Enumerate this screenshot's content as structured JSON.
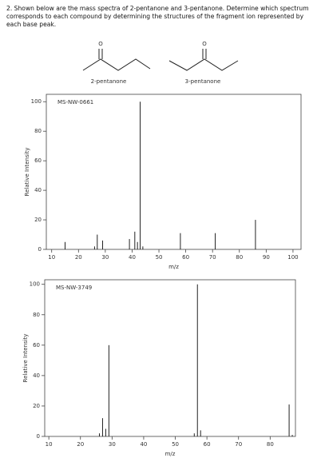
{
  "question": "2. Shown below are the mass spectra of 2-pentanone and 3-pentanone. Determine which spectrum corresponds to each compound by determining the structures of the fragment ion represented by each base peak.",
  "compounds": [
    {
      "label": "2-pentanone",
      "atom": "O"
    },
    {
      "label": "3-pentanone",
      "atom": "O"
    }
  ],
  "chart_data": [
    {
      "type": "bar",
      "code": "MS-NW-0661",
      "xlabel": "m/z",
      "ylabel": "Relative Intensity",
      "color": "#222222",
      "x": [
        15,
        26,
        27,
        29,
        39,
        41,
        42,
        43,
        44,
        58,
        71,
        86
      ],
      "values": [
        5,
        2,
        10,
        6,
        7,
        12,
        5,
        100,
        2,
        11,
        11,
        20
      ],
      "xlim": [
        8,
        103
      ],
      "ylim": [
        0,
        105
      ],
      "xticks": [
        10,
        20,
        30,
        40,
        50,
        60,
        70,
        80,
        90,
        100
      ],
      "yticks": [
        0,
        20,
        40,
        60,
        80,
        100
      ]
    },
    {
      "type": "bar",
      "code": "MS-NW-3749",
      "xlabel": "m/z",
      "ylabel": "Relative Intensity",
      "color": "#222222",
      "x": [
        26,
        27,
        28,
        29,
        56,
        57,
        58,
        86,
        87
      ],
      "values": [
        2,
        12,
        5,
        60,
        2,
        100,
        4,
        21,
        1
      ],
      "xlim": [
        8.7,
        88
      ],
      "ylim": [
        0,
        103
      ],
      "xticks": [
        10,
        20,
        30,
        40,
        50,
        60,
        70,
        80
      ],
      "yticks": [
        0,
        20,
        40,
        60,
        80,
        100
      ]
    }
  ]
}
